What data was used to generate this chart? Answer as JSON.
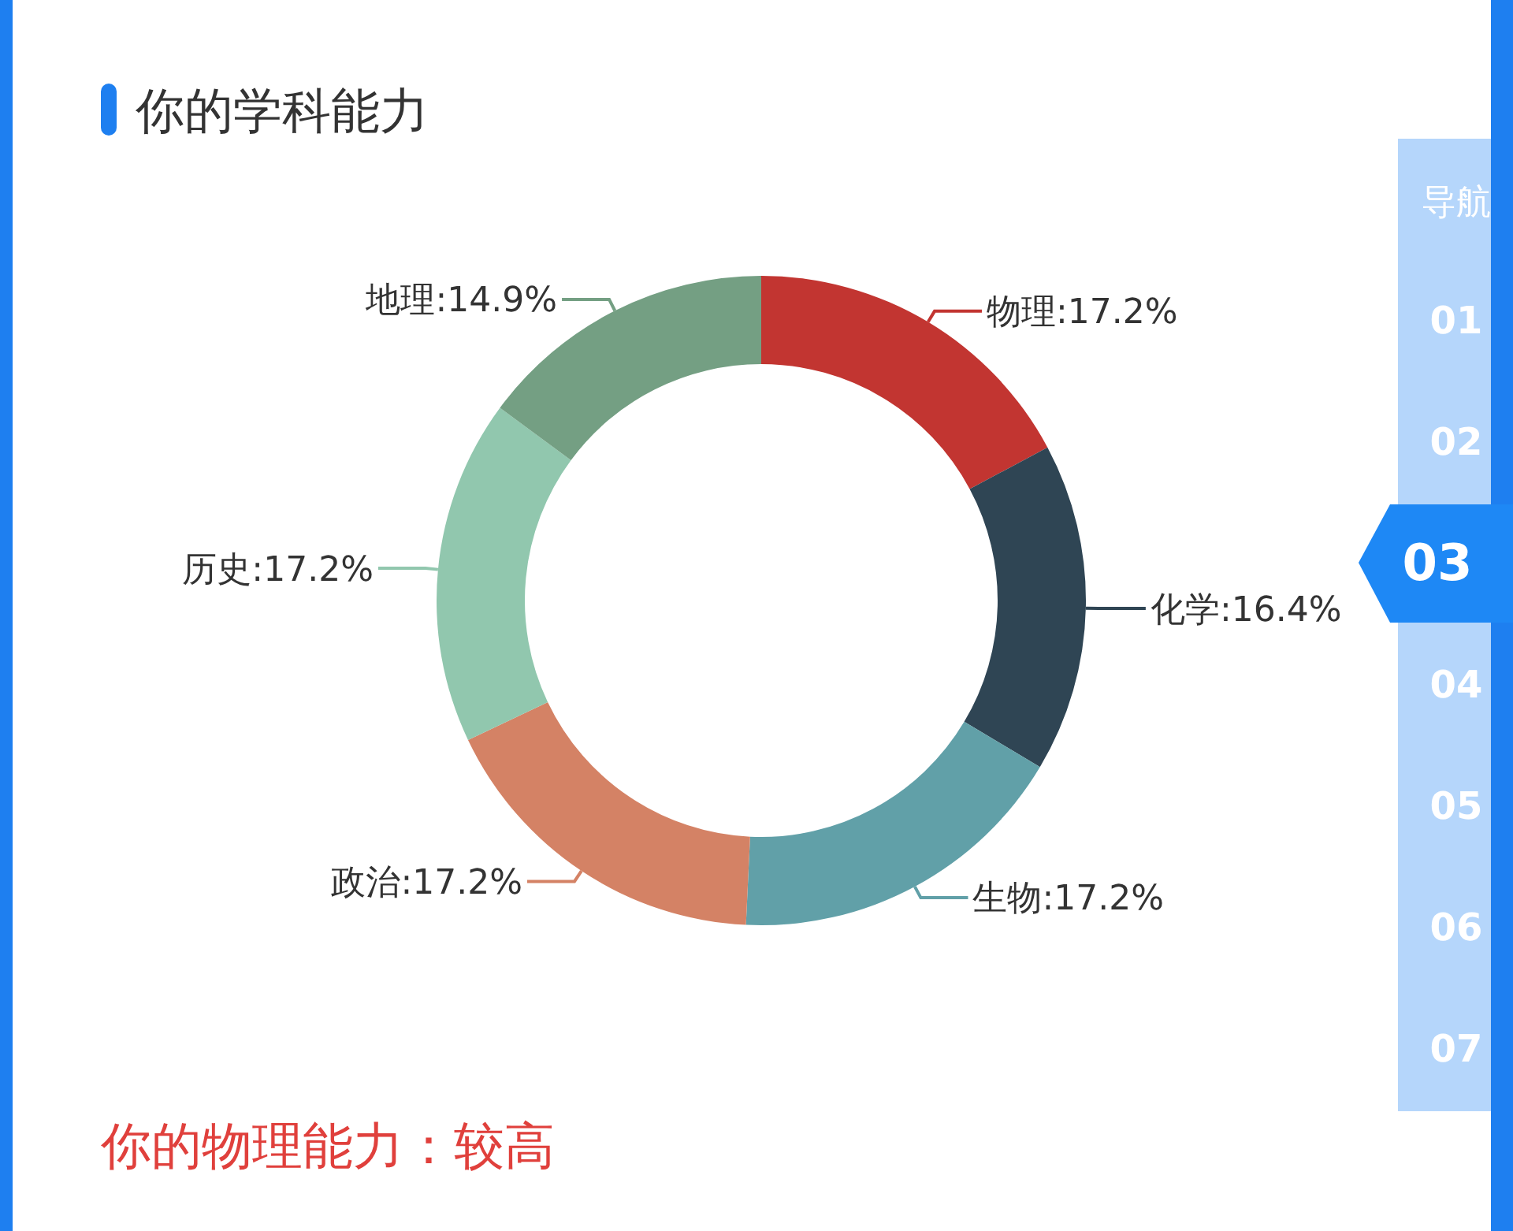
{
  "chart_data": {
    "type": "donut",
    "title": "你的学科能力",
    "categories": [
      "物理",
      "化学",
      "生物",
      "政治",
      "历史",
      "地理"
    ],
    "values": [
      17.2,
      16.4,
      17.2,
      17.2,
      17.2,
      14.9
    ],
    "colors": [
      "#c23531",
      "#2f4554",
      "#61a0a8",
      "#d48265",
      "#91c7ae",
      "#749f83"
    ],
    "value_labels": [
      ":17.2%",
      ":16.4%",
      ":17.2%",
      ":17.2%",
      ":17.2%",
      ":14.9%"
    ],
    "annotations": [
      "你的物理能力：较高",
      "导航",
      "01",
      "02",
      "03",
      "04",
      "05",
      "06",
      "07"
    ]
  }
}
